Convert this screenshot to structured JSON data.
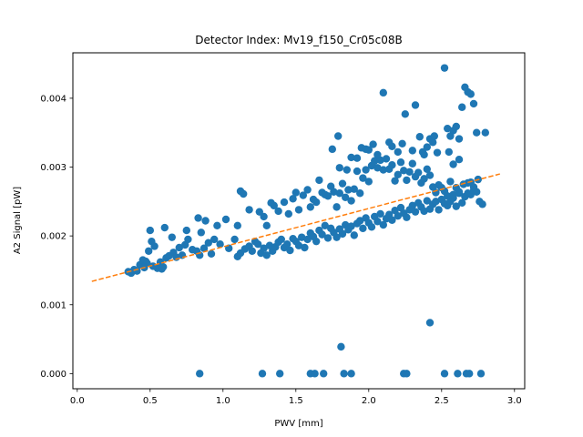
{
  "chart_data": {
    "type": "scatter",
    "title": "Detector Index: Mv19_f150_Cr05c08B",
    "xlabel": "PWV [mm]",
    "ylabel": "A2 Signal [pW]",
    "xlim": [
      -0.03,
      3.07
    ],
    "ylim": [
      -0.00022,
      0.00466
    ],
    "x_ticks": [
      0.0,
      0.5,
      1.0,
      1.5,
      2.0,
      2.5,
      3.0
    ],
    "x_tick_labels": [
      "0.0",
      "0.5",
      "1.0",
      "1.5",
      "2.0",
      "2.5",
      "3.0"
    ],
    "y_ticks": [
      0.0,
      0.001,
      0.002,
      0.003,
      0.004
    ],
    "y_tick_labels": [
      "0.000",
      "0.001",
      "0.002",
      "0.003",
      "0.004"
    ],
    "grid": false,
    "colors": {
      "points": "#1f77b4",
      "fit": "#ff7f0e"
    },
    "fit_line": {
      "style": "dashed",
      "x": [
        0.1,
        2.9
      ],
      "y": [
        0.00134,
        0.0029
      ]
    },
    "series": [
      {
        "name": "measurements",
        "points": [
          [
            0.35,
            0.00148
          ],
          [
            0.37,
            0.00146
          ],
          [
            0.39,
            0.00151
          ],
          [
            0.41,
            0.00149
          ],
          [
            0.43,
            0.00158
          ],
          [
            0.45,
            0.00165
          ],
          [
            0.47,
            0.00163
          ],
          [
            0.49,
            0.00178
          ],
          [
            0.51,
            0.00192
          ],
          [
            0.53,
            0.00185
          ],
          [
            0.55,
            0.00153
          ],
          [
            0.57,
            0.00162
          ],
          [
            0.59,
            0.00155
          ],
          [
            0.61,
            0.00168
          ],
          [
            0.63,
            0.00171
          ],
          [
            0.66,
            0.00176
          ],
          [
            0.68,
            0.00169
          ],
          [
            0.7,
            0.00183
          ],
          [
            0.72,
            0.00172
          ],
          [
            0.74,
            0.00187
          ],
          [
            0.76,
            0.00195
          ],
          [
            0.79,
            0.0018
          ],
          [
            0.5,
            0.00208
          ],
          [
            0.6,
            0.00212
          ],
          [
            0.65,
            0.00198
          ],
          [
            0.48,
            0.0016
          ],
          [
            0.52,
            0.00156
          ],
          [
            0.58,
            0.00152
          ],
          [
            0.46,
            0.00154
          ],
          [
            0.75,
            0.00208
          ],
          [
            0.83,
            0.00226
          ],
          [
            0.88,
            0.00222
          ],
          [
            0.85,
            0.00205
          ],
          [
            0.9,
            0.0019
          ],
          [
            0.94,
            0.00195
          ],
          [
            0.96,
            0.00215
          ],
          [
            1.02,
            0.00224
          ],
          [
            0.82,
            0.00178
          ],
          [
            0.84,
            0.00172
          ],
          [
            0.87,
            0.00182
          ],
          [
            0.92,
            0.00174
          ],
          [
            0.98,
            0.00188
          ],
          [
            1.04,
            0.00182
          ],
          [
            1.08,
            0.00195
          ],
          [
            1.1,
            0.0017
          ],
          [
            1.12,
            0.00175
          ],
          [
            1.15,
            0.00181
          ],
          [
            1.18,
            0.00185
          ],
          [
            1.2,
            0.00178
          ],
          [
            1.22,
            0.00192
          ],
          [
            1.24,
            0.00188
          ],
          [
            1.26,
            0.00175
          ],
          [
            1.28,
            0.00182
          ],
          [
            1.3,
            0.00172
          ],
          [
            1.32,
            0.00186
          ],
          [
            1.34,
            0.00178
          ],
          [
            1.36,
            0.00184
          ],
          [
            1.38,
            0.00191
          ],
          [
            1.4,
            0.00195
          ],
          [
            1.42,
            0.00183
          ],
          [
            1.44,
            0.00188
          ],
          [
            1.46,
            0.00179
          ],
          [
            1.48,
            0.00196
          ],
          [
            1.5,
            0.00192
          ],
          [
            1.52,
            0.00186
          ],
          [
            1.54,
            0.00198
          ],
          [
            1.56,
            0.00183
          ],
          [
            1.58,
            0.00195
          ],
          [
            1.6,
            0.00204
          ],
          [
            1.62,
            0.00199
          ],
          [
            1.64,
            0.00192
          ],
          [
            1.66,
            0.00208
          ],
          [
            1.68,
            0.00202
          ],
          [
            1.7,
            0.00215
          ],
          [
            1.72,
            0.00197
          ],
          [
            1.74,
            0.00211
          ],
          [
            1.76,
            0.00205
          ],
          [
            1.78,
            0.00198
          ],
          [
            1.8,
            0.0021
          ],
          [
            1.82,
            0.00203
          ],
          [
            1.84,
            0.00216
          ],
          [
            1.86,
            0.00209
          ],
          [
            1.88,
            0.00214
          ],
          [
            1.9,
            0.00201
          ],
          [
            1.92,
            0.00218
          ],
          [
            1.94,
            0.00222
          ],
          [
            1.96,
            0.00211
          ],
          [
            1.98,
            0.00226
          ],
          [
            2.0,
            0.00219
          ],
          [
            2.02,
            0.00213
          ],
          [
            2.04,
            0.00228
          ],
          [
            2.06,
            0.00221
          ],
          [
            2.08,
            0.00232
          ],
          [
            2.1,
            0.00216
          ],
          [
            2.12,
            0.00225
          ],
          [
            2.14,
            0.00231
          ],
          [
            2.16,
            0.00223
          ],
          [
            2.18,
            0.00237
          ],
          [
            2.2,
            0.00229
          ],
          [
            2.22,
            0.00241
          ],
          [
            2.24,
            0.00233
          ],
          [
            2.26,
            0.00227
          ],
          [
            2.28,
            0.00238
          ],
          [
            2.3,
            0.00244
          ],
          [
            2.32,
            0.00235
          ],
          [
            2.34,
            0.00248
          ],
          [
            2.36,
            0.00242
          ],
          [
            2.38,
            0.00236
          ],
          [
            2.4,
            0.00251
          ],
          [
            2.42,
            0.00239
          ],
          [
            2.44,
            0.00246
          ],
          [
            2.46,
            0.0025
          ],
          [
            2.48,
            0.00238
          ],
          [
            2.5,
            0.00253
          ],
          [
            2.52,
            0.00247
          ],
          [
            2.54,
            0.00244
          ],
          [
            2.56,
            0.0025
          ],
          [
            2.58,
            0.00255
          ],
          [
            2.6,
            0.00243
          ],
          [
            2.62,
            0.00262
          ],
          [
            2.64,
            0.00248
          ],
          [
            2.66,
            0.00257
          ],
          [
            2.68,
            0.00262
          ],
          [
            2.7,
            0.0026
          ],
          [
            2.72,
            0.00266
          ],
          [
            2.74,
            0.00264
          ],
          [
            2.76,
            0.0025
          ],
          [
            1.1,
            0.00215
          ],
          [
            1.12,
            0.00265
          ],
          [
            1.14,
            0.00261
          ],
          [
            1.18,
            0.00238
          ],
          [
            1.25,
            0.00235
          ],
          [
            1.28,
            0.00228
          ],
          [
            1.3,
            0.00215
          ],
          [
            1.33,
            0.00248
          ],
          [
            1.35,
            0.00244
          ],
          [
            1.38,
            0.00236
          ],
          [
            1.42,
            0.00249
          ],
          [
            1.45,
            0.00232
          ],
          [
            1.48,
            0.00254
          ],
          [
            1.5,
            0.00263
          ],
          [
            1.52,
            0.00238
          ],
          [
            1.55,
            0.00259
          ],
          [
            1.58,
            0.00267
          ],
          [
            1.6,
            0.00242
          ],
          [
            1.62,
            0.00253
          ],
          [
            1.64,
            0.00249
          ],
          [
            1.66,
            0.00281
          ],
          [
            1.68,
            0.00263
          ],
          [
            1.7,
            0.0026
          ],
          [
            1.72,
            0.00258
          ],
          [
            1.74,
            0.00272
          ],
          [
            1.76,
            0.00264
          ],
          [
            1.78,
            0.00242
          ],
          [
            1.8,
            0.00262
          ],
          [
            1.82,
            0.00276
          ],
          [
            1.84,
            0.00256
          ],
          [
            1.86,
            0.00267
          ],
          [
            1.88,
            0.00251
          ],
          [
            1.9,
            0.00268
          ],
          [
            1.92,
            0.00294
          ],
          [
            1.94,
            0.00262
          ],
          [
            1.96,
            0.00284
          ],
          [
            1.98,
            0.00296
          ],
          [
            2.0,
            0.00279
          ],
          [
            2.02,
            0.00302
          ],
          [
            2.04,
            0.00309
          ],
          [
            2.06,
            0.00299
          ],
          [
            2.08,
            0.0031
          ],
          [
            2.1,
            0.00296
          ],
          [
            2.12,
            0.00312
          ],
          [
            2.14,
            0.00297
          ],
          [
            2.16,
            0.00303
          ],
          [
            2.18,
            0.0028
          ],
          [
            2.2,
            0.00289
          ],
          [
            2.22,
            0.00307
          ],
          [
            2.24,
            0.00295
          ],
          [
            2.26,
            0.00281
          ],
          [
            2.28,
            0.00293
          ],
          [
            2.3,
            0.00305
          ],
          [
            2.32,
            0.00286
          ],
          [
            2.34,
            0.00292
          ],
          [
            2.36,
            0.00277
          ],
          [
            2.38,
            0.00283
          ],
          [
            2.4,
            0.00297
          ],
          [
            2.42,
            0.00288
          ],
          [
            2.44,
            0.00271
          ],
          [
            2.46,
            0.00263
          ],
          [
            2.48,
            0.00274
          ],
          [
            2.5,
            0.0027
          ],
          [
            2.52,
            0.00265
          ],
          [
            2.54,
            0.00258
          ],
          [
            2.56,
            0.00279
          ],
          [
            2.58,
            0.0026
          ],
          [
            2.6,
            0.0027
          ],
          [
            2.62,
            0.00264
          ],
          [
            2.65,
            0.00275
          ],
          [
            2.68,
            0.00277
          ],
          [
            2.7,
            0.00278
          ],
          [
            2.72,
            0.00271
          ],
          [
            2.75,
            0.00282
          ],
          [
            1.79,
            0.00345
          ],
          [
            1.75,
            0.00326
          ],
          [
            1.8,
            0.00299
          ],
          [
            1.85,
            0.00296
          ],
          [
            1.88,
            0.00314
          ],
          [
            1.92,
            0.00313
          ],
          [
            1.95,
            0.00328
          ],
          [
            1.98,
            0.00326
          ],
          [
            2.0,
            0.00325
          ],
          [
            2.03,
            0.00333
          ],
          [
            2.06,
            0.00318
          ],
          [
            2.1,
            0.00408
          ],
          [
            2.14,
            0.00336
          ],
          [
            2.16,
            0.0033
          ],
          [
            2.2,
            0.00322
          ],
          [
            2.23,
            0.00334
          ],
          [
            2.25,
            0.00377
          ],
          [
            2.3,
            0.00324
          ],
          [
            2.32,
            0.0039
          ],
          [
            2.35,
            0.00344
          ],
          [
            2.37,
            0.00322
          ],
          [
            2.4,
            0.00329
          ],
          [
            2.42,
            0.00341
          ],
          [
            2.44,
            0.00336
          ],
          [
            2.47,
            0.00321
          ],
          [
            2.52,
            0.00444
          ],
          [
            2.54,
            0.00356
          ],
          [
            2.56,
            0.00345
          ],
          [
            2.58,
            0.00353
          ],
          [
            2.6,
            0.00359
          ],
          [
            2.62,
            0.00341
          ],
          [
            2.64,
            0.00387
          ],
          [
            2.66,
            0.00416
          ],
          [
            2.68,
            0.00409
          ],
          [
            2.7,
            0.00406
          ],
          [
            2.72,
            0.00392
          ],
          [
            2.74,
            0.0035
          ],
          [
            2.8,
            0.0035
          ],
          [
            2.78,
            0.00246
          ],
          [
            2.55,
            0.00322
          ],
          [
            2.58,
            0.00304
          ],
          [
            2.62,
            0.00311
          ],
          [
            2.45,
            0.00345
          ],
          [
            2.38,
            0.00318
          ],
          [
            0.84,
            0.0
          ],
          [
            1.27,
            0.0
          ],
          [
            1.39,
            0.0
          ],
          [
            1.6,
            0.0
          ],
          [
            1.63,
            0.0
          ],
          [
            1.69,
            0.0
          ],
          [
            1.83,
            0.0
          ],
          [
            1.88,
            0.0
          ],
          [
            2.24,
            0.0
          ],
          [
            2.26,
            0.0
          ],
          [
            2.52,
            0.0
          ],
          [
            2.61,
            0.0
          ],
          [
            2.67,
            0.0
          ],
          [
            2.69,
            0.0
          ],
          [
            2.77,
            0.0
          ],
          [
            1.81,
            0.00039
          ],
          [
            2.42,
            0.00074
          ]
        ]
      }
    ]
  }
}
